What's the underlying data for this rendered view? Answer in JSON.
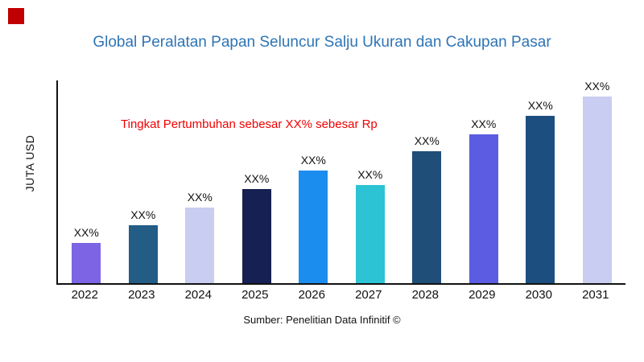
{
  "page": {
    "background": "#ffffff",
    "brand_square_color": "#c00000"
  },
  "title": {
    "text": "Global Peralatan Papan Seluncur Salju Ukuran dan Cakupan Pasar",
    "color": "#2e74b5"
  },
  "annotation": {
    "text": "Tingkat Pertumbuhan sebesar XX% sebesar Rp",
    "color": "#f20000"
  },
  "source": {
    "text": "Sumber: Penelitian Data Infinitif ©"
  },
  "chart_data": {
    "type": "bar",
    "title": "Global Peralatan Papan Seluncur Salju Ukuran dan Cakupan Pasar",
    "ylabel": "JUTA USD",
    "xlabel": "",
    "categories": [
      "2022",
      "2023",
      "2024",
      "2025",
      "2026",
      "2027",
      "2028",
      "2029",
      "2030",
      "2031"
    ],
    "values": [
      50,
      72,
      94,
      117,
      140,
      122,
      164,
      185,
      208,
      232
    ],
    "value_note": "axis has no numeric ticks; values are relative bar heights estimated from pixels",
    "bar_labels": [
      "XX%",
      "XX%",
      "XX%",
      "XX%",
      "XX%",
      "XX%",
      "XX%",
      "XX%",
      "XX%",
      "XX%"
    ],
    "bar_colors": [
      "#7c64e4",
      "#235d85",
      "#c9cdf2",
      "#172052",
      "#1b8def",
      "#2cc3d4",
      "#1f4e79",
      "#5b5ce2",
      "#1c4f80",
      "#c9cdf2"
    ],
    "annotation": "Tingkat Pertumbuhan sebesar XX% sebesar Rp",
    "grid": false,
    "legend": false,
    "ylim": [
      0,
      252
    ]
  }
}
